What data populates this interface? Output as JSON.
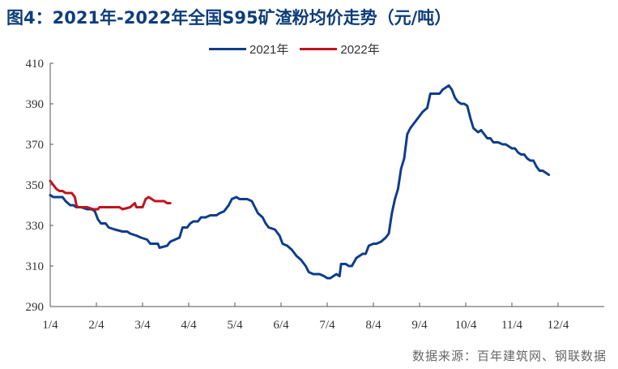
{
  "chart_data": {
    "type": "line",
    "title": "图4：2021年-2022年全国S95矿渣粉均价走势（元/吨）",
    "xlabel": "",
    "ylabel": "",
    "x_ticks": [
      "1/4",
      "2/4",
      "3/4",
      "4/4",
      "5/4",
      "6/4",
      "7/4",
      "8/4",
      "9/4",
      "10/4",
      "11/4",
      "12/4"
    ],
    "y_ticks": [
      290,
      310,
      330,
      350,
      370,
      390,
      410
    ],
    "ylim": [
      290,
      410
    ],
    "x_domain_days": [
      0,
      360
    ],
    "grid": false,
    "legend_position": "top",
    "series": [
      {
        "name": "2021年",
        "color": "#0e3d8b",
        "points": [
          [
            0,
            345
          ],
          [
            2,
            344
          ],
          [
            4,
            344
          ],
          [
            8,
            344
          ],
          [
            10,
            342
          ],
          [
            13,
            340
          ],
          [
            15,
            340
          ],
          [
            17,
            339
          ],
          [
            20,
            339
          ],
          [
            24,
            338
          ],
          [
            27,
            338
          ],
          [
            29,
            337
          ],
          [
            31,
            333
          ],
          [
            33,
            331
          ],
          [
            36,
            331
          ],
          [
            38,
            329
          ],
          [
            42,
            328
          ],
          [
            47,
            327
          ],
          [
            50,
            327
          ],
          [
            52,
            326
          ],
          [
            56,
            325
          ],
          [
            59,
            324
          ],
          [
            63,
            323
          ],
          [
            65,
            321
          ],
          [
            70,
            321
          ],
          [
            71,
            319
          ],
          [
            76,
            320
          ],
          [
            78,
            322
          ],
          [
            81,
            323
          ],
          [
            84,
            324
          ],
          [
            86,
            329
          ],
          [
            89,
            329
          ],
          [
            91,
            331
          ],
          [
            93,
            332
          ],
          [
            96,
            332
          ],
          [
            98,
            334
          ],
          [
            101,
            334
          ],
          [
            104,
            335
          ],
          [
            108,
            335
          ],
          [
            110,
            336
          ],
          [
            113,
            337
          ],
          [
            116,
            340
          ],
          [
            118,
            343
          ],
          [
            121,
            344
          ],
          [
            123,
            343
          ],
          [
            128,
            343
          ],
          [
            131,
            342
          ],
          [
            133,
            339
          ],
          [
            135,
            336
          ],
          [
            138,
            334
          ],
          [
            140,
            331
          ],
          [
            142,
            329
          ],
          [
            146,
            328
          ],
          [
            149,
            325
          ],
          [
            151,
            321
          ],
          [
            154,
            320
          ],
          [
            157,
            318
          ],
          [
            160,
            315
          ],
          [
            163,
            313
          ],
          [
            166,
            310
          ],
          [
            168,
            307
          ],
          [
            171,
            306
          ],
          [
            175,
            306
          ],
          [
            178,
            305
          ],
          [
            180,
            304
          ],
          [
            182,
            304
          ],
          [
            184,
            305
          ],
          [
            186,
            306
          ],
          [
            188,
            305
          ],
          [
            189,
            311
          ],
          [
            192,
            311
          ],
          [
            194,
            310
          ],
          [
            196,
            310
          ],
          [
            199,
            314
          ],
          [
            201,
            315
          ],
          [
            203,
            316
          ],
          [
            205,
            316
          ],
          [
            207,
            320
          ],
          [
            210,
            321
          ],
          [
            212,
            321
          ],
          [
            215,
            322
          ],
          [
            218,
            324
          ],
          [
            220,
            326
          ],
          [
            222,
            336
          ],
          [
            224,
            343
          ],
          [
            226,
            348
          ],
          [
            228,
            358
          ],
          [
            230,
            363
          ],
          [
            232,
            375
          ],
          [
            234,
            378
          ],
          [
            236,
            380
          ],
          [
            238,
            382
          ],
          [
            240,
            384
          ],
          [
            242,
            386
          ],
          [
            245,
            388
          ],
          [
            247,
            395
          ],
          [
            250,
            395
          ],
          [
            253,
            395
          ],
          [
            255,
            397
          ],
          [
            257,
            398
          ],
          [
            259,
            399
          ],
          [
            261,
            397
          ],
          [
            263,
            393
          ],
          [
            265,
            391
          ],
          [
            267,
            390
          ],
          [
            269,
            390
          ],
          [
            271,
            389
          ],
          [
            273,
            383
          ],
          [
            275,
            378
          ],
          [
            278,
            376
          ],
          [
            280,
            377
          ],
          [
            282,
            375
          ],
          [
            284,
            373
          ],
          [
            286,
            373
          ],
          [
            288,
            371
          ],
          [
            291,
            371
          ],
          [
            294,
            370
          ],
          [
            296,
            370
          ],
          [
            298,
            369
          ],
          [
            300,
            368
          ],
          [
            302,
            368
          ],
          [
            304,
            366
          ],
          [
            306,
            365
          ],
          [
            308,
            365
          ],
          [
            310,
            363
          ],
          [
            312,
            362
          ],
          [
            314,
            362
          ],
          [
            316,
            359
          ],
          [
            318,
            357
          ],
          [
            320,
            357
          ],
          [
            322,
            356
          ],
          [
            324,
            355
          ]
        ]
      },
      {
        "name": "2022年",
        "color": "#c0131c",
        "points": [
          [
            0,
            352
          ],
          [
            2,
            350
          ],
          [
            4,
            348
          ],
          [
            6,
            347
          ],
          [
            8,
            347
          ],
          [
            10,
            346
          ],
          [
            14,
            346
          ],
          [
            16,
            344
          ],
          [
            17,
            340
          ],
          [
            18,
            339
          ],
          [
            24,
            339
          ],
          [
            28,
            338
          ],
          [
            31,
            338
          ],
          [
            32,
            339
          ],
          [
            41,
            339
          ],
          [
            45,
            339
          ],
          [
            47,
            338
          ],
          [
            52,
            339
          ],
          [
            55,
            341
          ],
          [
            56,
            339
          ],
          [
            58,
            339
          ],
          [
            60,
            339
          ],
          [
            62,
            343
          ],
          [
            64,
            344
          ],
          [
            66,
            343
          ],
          [
            68,
            342
          ],
          [
            72,
            342
          ],
          [
            74,
            342
          ],
          [
            76,
            341
          ],
          [
            78,
            341
          ]
        ]
      }
    ]
  },
  "source": "数据来源：百年建筑网、钢联数据"
}
